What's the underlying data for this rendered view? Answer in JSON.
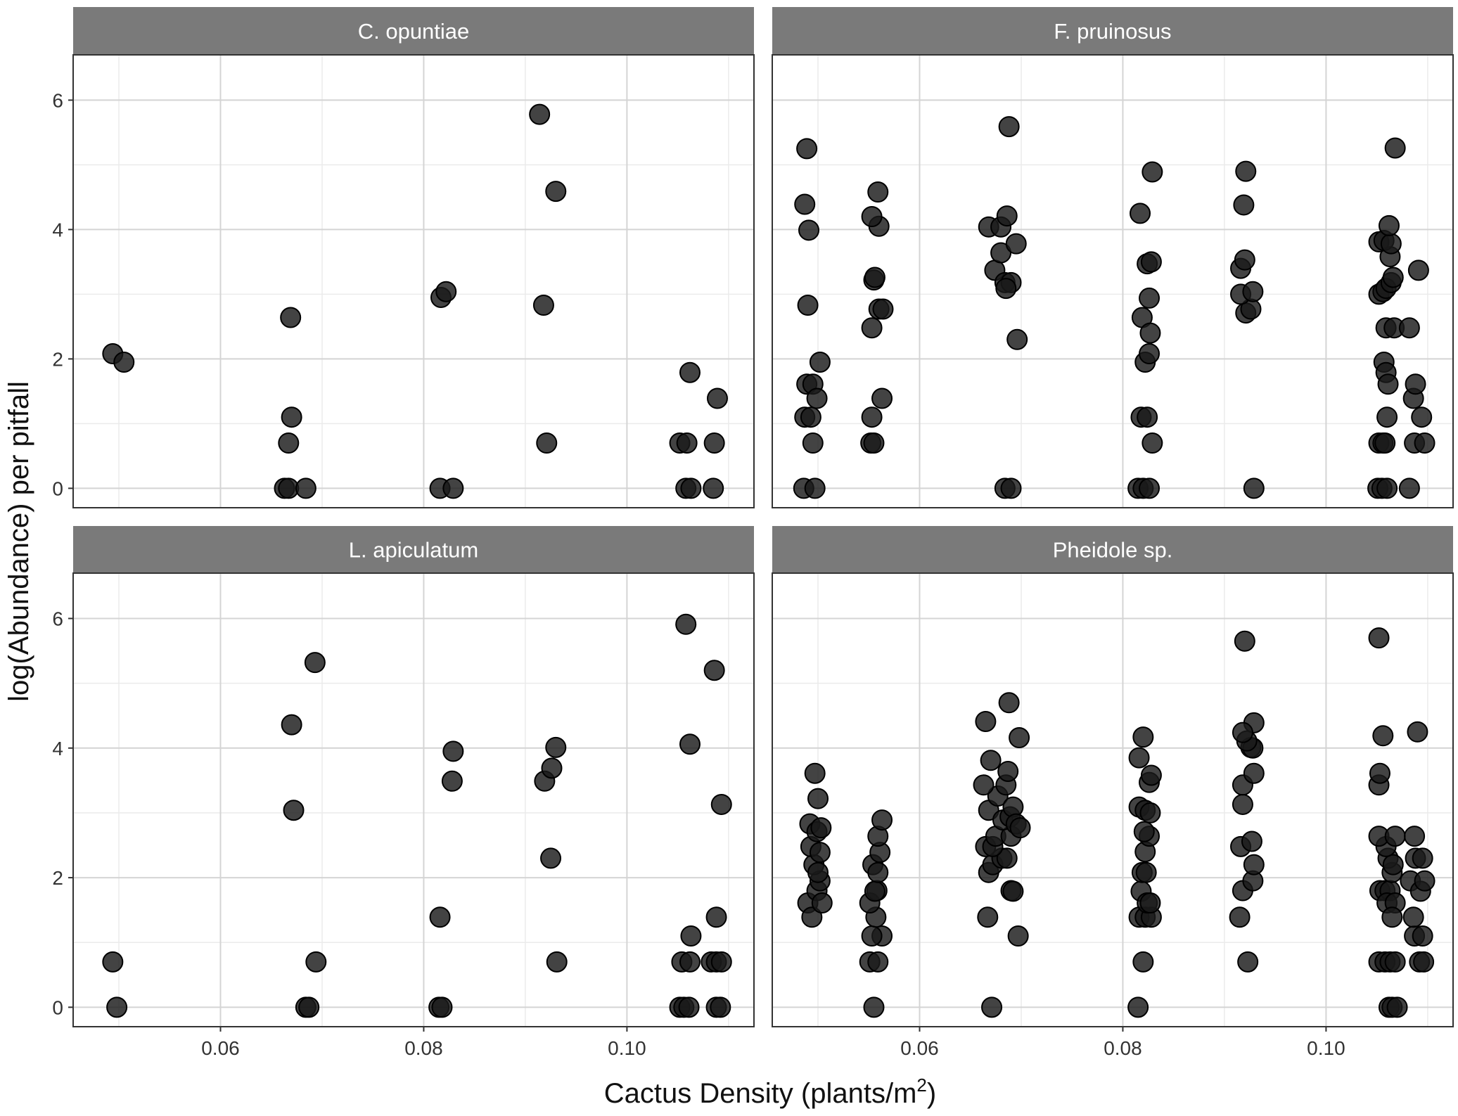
{
  "chart_data": {
    "type": "scatter",
    "facet_layout": "2x2",
    "xlabel": "Cactus Density (plants/m",
    "xlabel_superscript": "2",
    "xlabel_suffix": ")",
    "ylabel": "log(Abundance) per pitfall",
    "xlim": [
      0.0455,
      0.1125
    ],
    "ylim": [
      -0.3,
      6.7
    ],
    "xticks": [
      0.06,
      0.08,
      0.1
    ],
    "xtick_labels": [
      "0.06",
      "0.08",
      "0.10"
    ],
    "yticks": [
      0,
      2,
      4,
      6
    ],
    "ytick_labels": [
      "0",
      "2",
      "4",
      "6"
    ],
    "grid": true,
    "point_color": "#1a1a1a",
    "strip_color": "#7a7a7a",
    "panels": [
      {
        "title": "C. opuntiae",
        "points": [
          [
            0.0494,
            2.08
          ],
          [
            0.0505,
            1.95
          ],
          [
            0.0663,
            0.0
          ],
          [
            0.0667,
            0.0
          ],
          [
            0.0684,
            0.0
          ],
          [
            0.0667,
            0.7
          ],
          [
            0.067,
            1.1
          ],
          [
            0.0669,
            2.64
          ],
          [
            0.0816,
            0.0
          ],
          [
            0.0829,
            0.0
          ],
          [
            0.0817,
            2.95
          ],
          [
            0.0822,
            3.04
          ],
          [
            0.0921,
            0.7
          ],
          [
            0.0918,
            2.83
          ],
          [
            0.0914,
            5.78
          ],
          [
            0.093,
            4.59
          ],
          [
            0.1052,
            0.7
          ],
          [
            0.1059,
            0.7
          ],
          [
            0.1058,
            0.0
          ],
          [
            0.1063,
            0.0
          ],
          [
            0.1085,
            0.0
          ],
          [
            0.1086,
            0.7
          ],
          [
            0.1062,
            1.79
          ],
          [
            0.1089,
            1.39
          ]
        ]
      },
      {
        "title": "F. pruinosus",
        "points": [
          [
            0.0486,
            0.0
          ],
          [
            0.0497,
            0.0
          ],
          [
            0.0495,
            0.7
          ],
          [
            0.0487,
            1.1
          ],
          [
            0.0493,
            1.1
          ],
          [
            0.0489,
            1.61
          ],
          [
            0.0495,
            1.61
          ],
          [
            0.0499,
            1.39
          ],
          [
            0.0502,
            1.95
          ],
          [
            0.049,
            2.83
          ],
          [
            0.0491,
            3.99
          ],
          [
            0.0487,
            4.39
          ],
          [
            0.0489,
            5.25
          ],
          [
            0.0552,
            0.7
          ],
          [
            0.0555,
            0.7
          ],
          [
            0.0553,
            1.1
          ],
          [
            0.0563,
            1.39
          ],
          [
            0.0553,
            2.48
          ],
          [
            0.056,
            2.77
          ],
          [
            0.0564,
            2.77
          ],
          [
            0.0555,
            3.22
          ],
          [
            0.0556,
            3.26
          ],
          [
            0.056,
            4.05
          ],
          [
            0.0553,
            4.2
          ],
          [
            0.0559,
            4.58
          ],
          [
            0.0684,
            0.0
          ],
          [
            0.069,
            0.0
          ],
          [
            0.0696,
            2.3
          ],
          [
            0.0674,
            3.37
          ],
          [
            0.0684,
            3.18
          ],
          [
            0.069,
            3.18
          ],
          [
            0.0685,
            3.09
          ],
          [
            0.068,
            3.64
          ],
          [
            0.0695,
            3.78
          ],
          [
            0.0668,
            4.04
          ],
          [
            0.068,
            4.04
          ],
          [
            0.0686,
            4.21
          ],
          [
            0.0688,
            5.59
          ],
          [
            0.0815,
            0.0
          ],
          [
            0.082,
            0.0
          ],
          [
            0.0826,
            0.0
          ],
          [
            0.0818,
            1.1
          ],
          [
            0.0824,
            1.1
          ],
          [
            0.0829,
            0.7
          ],
          [
            0.0822,
            1.95
          ],
          [
            0.0826,
            2.08
          ],
          [
            0.0819,
            2.64
          ],
          [
            0.0827,
            2.4
          ],
          [
            0.0826,
            2.94
          ],
          [
            0.0824,
            3.47
          ],
          [
            0.0828,
            3.5
          ],
          [
            0.0817,
            4.25
          ],
          [
            0.0829,
            4.89
          ],
          [
            0.0929,
            0.0
          ],
          [
            0.0921,
            2.71
          ],
          [
            0.0926,
            2.77
          ],
          [
            0.0916,
            3.0
          ],
          [
            0.0928,
            3.04
          ],
          [
            0.0916,
            3.4
          ],
          [
            0.092,
            3.53
          ],
          [
            0.0919,
            4.38
          ],
          [
            0.0921,
            4.9
          ],
          [
            0.1051,
            0.0
          ],
          [
            0.1055,
            0.0
          ],
          [
            0.106,
            0.0
          ],
          [
            0.1082,
            0.0
          ],
          [
            0.1052,
            0.7
          ],
          [
            0.1056,
            0.7
          ],
          [
            0.1058,
            0.7
          ],
          [
            0.1087,
            0.7
          ],
          [
            0.1097,
            0.7
          ],
          [
            0.106,
            1.1
          ],
          [
            0.1094,
            1.1
          ],
          [
            0.1086,
            1.39
          ],
          [
            0.1057,
            1.95
          ],
          [
            0.1059,
            1.79
          ],
          [
            0.1061,
            1.61
          ],
          [
            0.1088,
            1.61
          ],
          [
            0.1059,
            2.48
          ],
          [
            0.1067,
            2.48
          ],
          [
            0.1082,
            2.48
          ],
          [
            0.1052,
            3.0
          ],
          [
            0.1056,
            3.04
          ],
          [
            0.1059,
            3.09
          ],
          [
            0.1064,
            3.18
          ],
          [
            0.1066,
            3.26
          ],
          [
            0.1091,
            3.37
          ],
          [
            0.1063,
            3.58
          ],
          [
            0.1052,
            3.81
          ],
          [
            0.1057,
            3.83
          ],
          [
            0.1064,
            3.78
          ],
          [
            0.1062,
            4.06
          ],
          [
            0.1068,
            5.26
          ]
        ]
      },
      {
        "title": "L. apiculatum",
        "points": [
          [
            0.0494,
            0.7
          ],
          [
            0.0498,
            0.0
          ],
          [
            0.0684,
            0.0
          ],
          [
            0.0687,
            0.0
          ],
          [
            0.0694,
            0.7
          ],
          [
            0.0672,
            3.04
          ],
          [
            0.067,
            4.36
          ],
          [
            0.0693,
            5.32
          ],
          [
            0.0815,
            0.0
          ],
          [
            0.0818,
            0.0
          ],
          [
            0.0816,
            1.39
          ],
          [
            0.0828,
            3.49
          ],
          [
            0.0829,
            3.95
          ],
          [
            0.0931,
            0.7
          ],
          [
            0.0925,
            2.3
          ],
          [
            0.0919,
            3.49
          ],
          [
            0.0926,
            3.69
          ],
          [
            0.093,
            4.01
          ],
          [
            0.1052,
            0.0
          ],
          [
            0.1056,
            0.0
          ],
          [
            0.1061,
            0.0
          ],
          [
            0.1088,
            0.0
          ],
          [
            0.1092,
            0.0
          ],
          [
            0.1054,
            0.7
          ],
          [
            0.1062,
            0.7
          ],
          [
            0.1083,
            0.7
          ],
          [
            0.1088,
            0.7
          ],
          [
            0.1093,
            0.7
          ],
          [
            0.1063,
            1.1
          ],
          [
            0.1088,
            1.39
          ],
          [
            0.1062,
            4.06
          ],
          [
            0.1093,
            3.13
          ],
          [
            0.1086,
            5.2
          ],
          [
            0.1058,
            5.91
          ]
        ]
      },
      {
        "title": "Pheidole sp.",
        "points": [
          [
            0.049,
            1.61
          ],
          [
            0.0494,
            1.39
          ],
          [
            0.0499,
            1.8
          ],
          [
            0.0504,
            1.61
          ],
          [
            0.0502,
            1.95
          ],
          [
            0.0496,
            2.2
          ],
          [
            0.05,
            2.08
          ],
          [
            0.0493,
            2.48
          ],
          [
            0.0502,
            2.39
          ],
          [
            0.0492,
            2.83
          ],
          [
            0.0499,
            2.71
          ],
          [
            0.0503,
            2.77
          ],
          [
            0.05,
            3.22
          ],
          [
            0.0497,
            3.61
          ],
          [
            0.0555,
            0.0
          ],
          [
            0.0551,
            0.7
          ],
          [
            0.0559,
            0.7
          ],
          [
            0.0563,
            1.1
          ],
          [
            0.0553,
            1.1
          ],
          [
            0.0557,
            1.39
          ],
          [
            0.0551,
            1.61
          ],
          [
            0.0558,
            1.8
          ],
          [
            0.0556,
            1.79
          ],
          [
            0.0554,
            2.2
          ],
          [
            0.0559,
            2.08
          ],
          [
            0.0561,
            2.39
          ],
          [
            0.0559,
            2.64
          ],
          [
            0.0563,
            2.89
          ],
          [
            0.0671,
            0.0
          ],
          [
            0.0667,
            1.39
          ],
          [
            0.0697,
            1.1
          ],
          [
            0.069,
            1.8
          ],
          [
            0.0692,
            1.79
          ],
          [
            0.0668,
            2.08
          ],
          [
            0.0672,
            2.2
          ],
          [
            0.0681,
            2.3
          ],
          [
            0.0686,
            2.3
          ],
          [
            0.0665,
            2.48
          ],
          [
            0.0672,
            2.48
          ],
          [
            0.0675,
            2.64
          ],
          [
            0.069,
            2.64
          ],
          [
            0.0668,
            3.04
          ],
          [
            0.0677,
            3.26
          ],
          [
            0.0682,
            2.89
          ],
          [
            0.0689,
            2.94
          ],
          [
            0.0692,
            3.09
          ],
          [
            0.0695,
            2.83
          ],
          [
            0.0699,
            2.77
          ],
          [
            0.0663,
            3.43
          ],
          [
            0.0685,
            3.43
          ],
          [
            0.067,
            3.81
          ],
          [
            0.0687,
            3.64
          ],
          [
            0.0698,
            4.16
          ],
          [
            0.0665,
            4.41
          ],
          [
            0.0688,
            4.7
          ],
          [
            0.0815,
            0.0
          ],
          [
            0.082,
            0.7
          ],
          [
            0.0816,
            1.39
          ],
          [
            0.0822,
            1.39
          ],
          [
            0.0828,
            1.39
          ],
          [
            0.0818,
            1.79
          ],
          [
            0.0824,
            1.61
          ],
          [
            0.0827,
            1.61
          ],
          [
            0.0819,
            2.08
          ],
          [
            0.0823,
            2.08
          ],
          [
            0.0822,
            2.4
          ],
          [
            0.0826,
            2.64
          ],
          [
            0.0821,
            2.71
          ],
          [
            0.0816,
            3.09
          ],
          [
            0.0822,
            3.04
          ],
          [
            0.0827,
            3.0
          ],
          [
            0.0826,
            3.47
          ],
          [
            0.0828,
            3.58
          ],
          [
            0.0816,
            3.85
          ],
          [
            0.082,
            4.17
          ],
          [
            0.0923,
            0.7
          ],
          [
            0.0915,
            1.39
          ],
          [
            0.0918,
            1.8
          ],
          [
            0.0928,
            1.95
          ],
          [
            0.0929,
            2.2
          ],
          [
            0.0916,
            2.48
          ],
          [
            0.0927,
            2.56
          ],
          [
            0.0918,
            3.13
          ],
          [
            0.0918,
            3.43
          ],
          [
            0.0929,
            3.61
          ],
          [
            0.0926,
            4.01
          ],
          [
            0.0928,
            4.0
          ],
          [
            0.0922,
            4.11
          ],
          [
            0.0929,
            4.39
          ],
          [
            0.0918,
            4.24
          ],
          [
            0.092,
            5.65
          ],
          [
            0.1052,
            0.7
          ],
          [
            0.1058,
            0.7
          ],
          [
            0.1063,
            0.7
          ],
          [
            0.1068,
            0.7
          ],
          [
            0.1092,
            0.7
          ],
          [
            0.1096,
            0.7
          ],
          [
            0.1062,
            0.0
          ],
          [
            0.1065,
            0.0
          ],
          [
            0.107,
            0.0
          ],
          [
            0.1087,
            1.1
          ],
          [
            0.1095,
            1.1
          ],
          [
            0.1053,
            1.8
          ],
          [
            0.1058,
            1.8
          ],
          [
            0.1063,
            1.8
          ],
          [
            0.106,
            1.61
          ],
          [
            0.1068,
            1.61
          ],
          [
            0.1065,
            1.39
          ],
          [
            0.1086,
            1.39
          ],
          [
            0.1065,
            2.08
          ],
          [
            0.1061,
            2.3
          ],
          [
            0.1066,
            2.2
          ],
          [
            0.1059,
            2.48
          ],
          [
            0.1083,
            1.95
          ],
          [
            0.1093,
            1.79
          ],
          [
            0.1097,
            1.95
          ],
          [
            0.1088,
            2.3
          ],
          [
            0.1095,
            2.3
          ],
          [
            0.1052,
            2.64
          ],
          [
            0.1068,
            2.64
          ],
          [
            0.1087,
            2.64
          ],
          [
            0.1052,
            3.43
          ],
          [
            0.1053,
            3.61
          ],
          [
            0.1056,
            4.19
          ],
          [
            0.109,
            4.25
          ],
          [
            0.1052,
            5.7
          ]
        ]
      }
    ]
  }
}
